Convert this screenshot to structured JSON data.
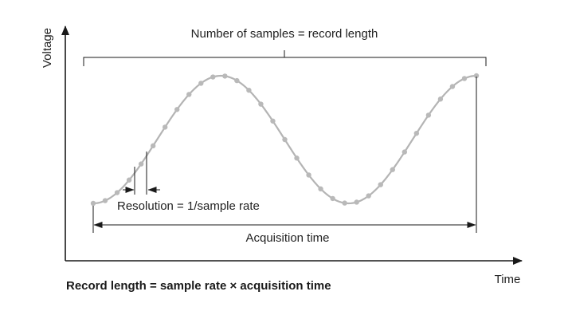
{
  "diagram": {
    "y_axis_label": "Voltage",
    "x_axis_label": "Time",
    "record_length_label": "Number of samples = record length",
    "resolution_label": "Resolution = 1/sample rate",
    "acquisition_label": "Acquisition time",
    "caption": "Record length = sample rate × acquisition time"
  },
  "colors": {
    "axis": "#1a1a1a",
    "wave": "#b4b4b4",
    "sample_dot": "#b9b9b9",
    "text": "#222222"
  },
  "waveform": {
    "shape": "sine",
    "cycles": 1.5,
    "sample_count": 33
  }
}
